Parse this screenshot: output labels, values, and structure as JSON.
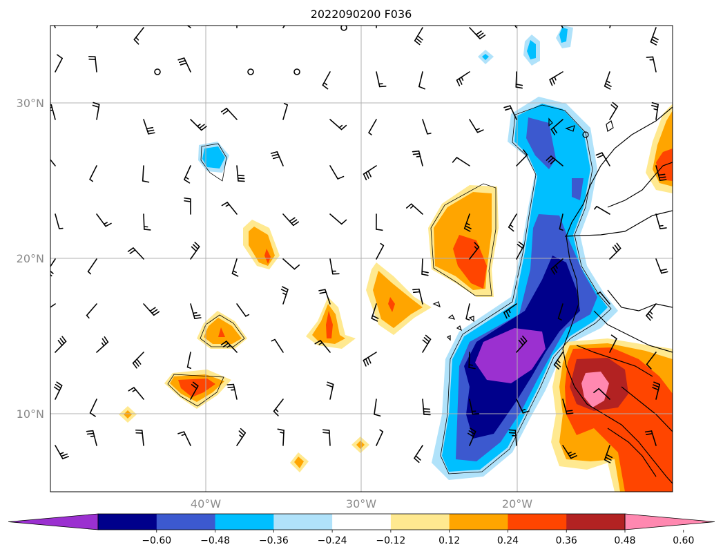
{
  "title": "2022090200 F036",
  "axes": {
    "lat_labels": [
      "30°N",
      "20°N",
      "10°N"
    ],
    "lon_labels": [
      "40°W",
      "30°W",
      "20°W"
    ]
  },
  "colorbar": {
    "tick_labels": [
      "−0.60",
      "−0.48",
      "−0.36",
      "−0.24",
      "−0.12",
      "0.12",
      "0.24",
      "0.36",
      "0.48",
      "0.60"
    ],
    "colors": [
      "#9b30d0",
      "#00008b",
      "#3c59cf",
      "#00bfff",
      "#b0e2fa",
      "#ffffff",
      "#ffe990",
      "#ffa500",
      "#ff4500",
      "#b22222",
      "#ff88b0"
    ]
  },
  "palette": {
    "purple": "#9b30d0",
    "navy": "#00008b",
    "royal": "#3c59cf",
    "sky": "#00bfff",
    "lightblue": "#b0e2fa",
    "lightyellow": "#ffe990",
    "orange": "#ffa500",
    "red": "#ff4500",
    "darkred": "#b22222",
    "pink": "#ff88b0"
  }
}
